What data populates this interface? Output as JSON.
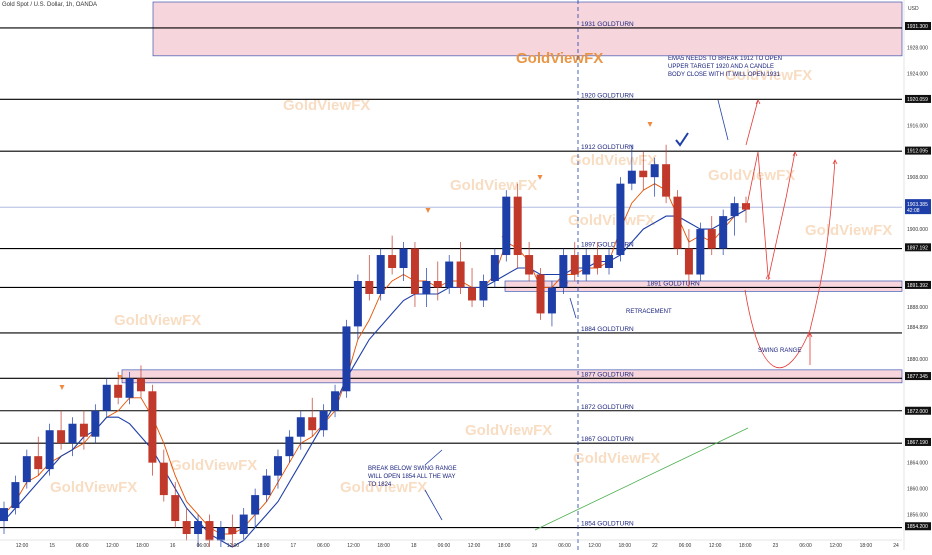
{
  "header": {
    "symbol_title": "Gold Spot / U.S. Dollar, 1h, OANDA",
    "currency": "USD"
  },
  "colors": {
    "bull": "#1f3fa8",
    "bear": "#c0392b",
    "level_line": "#000000",
    "zone_fill": "#f6d6dc",
    "zone_border": "#1f3fa8",
    "ema_fast": "#e65100",
    "ema_slow": "#1f3fa8",
    "current_price_line": "#1f3fa8",
    "projection": "#e53935",
    "watermark": "#f3c79b",
    "trend_line": "#4caf50"
  },
  "chart_data": {
    "type": "candlestick",
    "title": "Gold Spot / U.S. Dollar, 1h, OANDA",
    "ylim": [
      1851,
      1935
    ],
    "x_labels": [
      "12:00",
      "15",
      "06:00",
      "12:00",
      "18:00",
      "16",
      "06:00",
      "12:00",
      "18:00",
      "17",
      "06:00",
      "12:00",
      "18:00",
      "18",
      "06:00",
      "12:00",
      "18:00",
      "19",
      "06:00",
      "12:00",
      "18:00",
      "22",
      "06:00",
      "12:00",
      "18:00",
      "23",
      "06:00",
      "12:00",
      "18:00",
      "24"
    ],
    "y_tick_labels": [
      "1931.300",
      "1928.000",
      "1924.000",
      "1920.059",
      "1916.000",
      "1912.095",
      "1908.000",
      "1904.000",
      "1900.000",
      "1897.192",
      "1891.392",
      "1888.000",
      "1884.899",
      "1880.000",
      "1877.345",
      "1872.000",
      "1867.190",
      "1864.000",
      "1860.000",
      "1856.000",
      "1854.200"
    ],
    "levels": [
      {
        "price": 1931,
        "label": "1931 GOLDTURN"
      },
      {
        "price": 1920,
        "label": "1920 GOLDTURN"
      },
      {
        "price": 1912,
        "label": "1912 GOLDTURN"
      },
      {
        "price": 1897,
        "label": "1897 GOLDTURN"
      },
      {
        "price": 1891,
        "label": "1891 GOLDTURN"
      },
      {
        "price": 1884,
        "label": "1884 GOLDTURN"
      },
      {
        "price": 1877,
        "label": "1877 GOLDTURN"
      },
      {
        "price": 1872,
        "label": "1872 GOLDTURN"
      },
      {
        "price": 1867,
        "label": "1867 GOLDTURN"
      },
      {
        "price": 1854,
        "label": "1854 GOLDTURN"
      }
    ],
    "zones": [
      {
        "top": 1935,
        "bottom": 1926.7
      },
      {
        "top": 1878.3,
        "bottom": 1876.3
      },
      {
        "top": 1892.0,
        "bottom": 1890.4
      }
    ],
    "current_price": {
      "value": 1903.385,
      "label": "1903.385",
      "countdown": "42:08"
    },
    "candles": [
      {
        "o": 1855,
        "h": 1858,
        "l": 1853,
        "c": 1857
      },
      {
        "o": 1857,
        "h": 1862,
        "l": 1856,
        "c": 1861
      },
      {
        "o": 1861,
        "h": 1866,
        "l": 1860,
        "c": 1865
      },
      {
        "o": 1865,
        "h": 1868,
        "l": 1862,
        "c": 1863
      },
      {
        "o": 1863,
        "h": 1870,
        "l": 1862,
        "c": 1869
      },
      {
        "o": 1869,
        "h": 1872,
        "l": 1866,
        "c": 1867
      },
      {
        "o": 1867,
        "h": 1871,
        "l": 1865,
        "c": 1870
      },
      {
        "o": 1870,
        "h": 1872,
        "l": 1866,
        "c": 1868
      },
      {
        "o": 1868,
        "h": 1873,
        "l": 1867,
        "c": 1872
      },
      {
        "o": 1872,
        "h": 1877,
        "l": 1871,
        "c": 1876
      },
      {
        "o": 1876,
        "h": 1878,
        "l": 1873,
        "c": 1874
      },
      {
        "o": 1874,
        "h": 1878,
        "l": 1873,
        "c": 1877
      },
      {
        "o": 1877,
        "h": 1879,
        "l": 1874,
        "c": 1875
      },
      {
        "o": 1875,
        "h": 1876,
        "l": 1862,
        "c": 1864
      },
      {
        "o": 1864,
        "h": 1866,
        "l": 1858,
        "c": 1859
      },
      {
        "o": 1859,
        "h": 1861,
        "l": 1854,
        "c": 1855
      },
      {
        "o": 1855,
        "h": 1857,
        "l": 1852,
        "c": 1853
      },
      {
        "o": 1853,
        "h": 1856,
        "l": 1851,
        "c": 1855
      },
      {
        "o": 1855,
        "h": 1856,
        "l": 1851,
        "c": 1852
      },
      {
        "o": 1852,
        "h": 1855,
        "l": 1851,
        "c": 1854
      },
      {
        "o": 1854,
        "h": 1856,
        "l": 1851,
        "c": 1853
      },
      {
        "o": 1853,
        "h": 1857,
        "l": 1852,
        "c": 1856
      },
      {
        "o": 1856,
        "h": 1860,
        "l": 1854,
        "c": 1859
      },
      {
        "o": 1859,
        "h": 1863,
        "l": 1858,
        "c": 1862
      },
      {
        "o": 1862,
        "h": 1866,
        "l": 1860,
        "c": 1865
      },
      {
        "o": 1865,
        "h": 1869,
        "l": 1864,
        "c": 1868
      },
      {
        "o": 1868,
        "h": 1872,
        "l": 1866,
        "c": 1871
      },
      {
        "o": 1871,
        "h": 1874,
        "l": 1868,
        "c": 1869
      },
      {
        "o": 1869,
        "h": 1873,
        "l": 1868,
        "c": 1872
      },
      {
        "o": 1872,
        "h": 1876,
        "l": 1871,
        "c": 1875
      },
      {
        "o": 1875,
        "h": 1886,
        "l": 1874,
        "c": 1885
      },
      {
        "o": 1885,
        "h": 1893,
        "l": 1883,
        "c": 1892
      },
      {
        "o": 1892,
        "h": 1896,
        "l": 1889,
        "c": 1890
      },
      {
        "o": 1890,
        "h": 1897,
        "l": 1889,
        "c": 1896
      },
      {
        "o": 1896,
        "h": 1899,
        "l": 1893,
        "c": 1894
      },
      {
        "o": 1894,
        "h": 1898,
        "l": 1892,
        "c": 1897
      },
      {
        "o": 1897,
        "h": 1898,
        "l": 1888,
        "c": 1890
      },
      {
        "o": 1890,
        "h": 1894,
        "l": 1888,
        "c": 1892
      },
      {
        "o": 1892,
        "h": 1895,
        "l": 1889,
        "c": 1891
      },
      {
        "o": 1891,
        "h": 1896,
        "l": 1890,
        "c": 1895
      },
      {
        "o": 1895,
        "h": 1898,
        "l": 1890,
        "c": 1891
      },
      {
        "o": 1891,
        "h": 1894,
        "l": 1888,
        "c": 1889
      },
      {
        "o": 1889,
        "h": 1893,
        "l": 1888,
        "c": 1892
      },
      {
        "o": 1892,
        "h": 1897,
        "l": 1891,
        "c": 1896
      },
      {
        "o": 1896,
        "h": 1906,
        "l": 1895,
        "c": 1905
      },
      {
        "o": 1905,
        "h": 1907,
        "l": 1894,
        "c": 1896
      },
      {
        "o": 1896,
        "h": 1898,
        "l": 1892,
        "c": 1893
      },
      {
        "o": 1893,
        "h": 1894,
        "l": 1886,
        "c": 1887
      },
      {
        "o": 1887,
        "h": 1892,
        "l": 1885,
        "c": 1891
      },
      {
        "o": 1891,
        "h": 1897,
        "l": 1890,
        "c": 1896
      },
      {
        "o": 1896,
        "h": 1898,
        "l": 1892,
        "c": 1893
      },
      {
        "o": 1893,
        "h": 1897,
        "l": 1892,
        "c": 1896
      },
      {
        "o": 1896,
        "h": 1898,
        "l": 1893,
        "c": 1894
      },
      {
        "o": 1894,
        "h": 1897,
        "l": 1893,
        "c": 1896
      },
      {
        "o": 1896,
        "h": 1908,
        "l": 1895,
        "c": 1907
      },
      {
        "o": 1907,
        "h": 1913,
        "l": 1906,
        "c": 1909
      },
      {
        "o": 1909,
        "h": 1912,
        "l": 1906,
        "c": 1908
      },
      {
        "o": 1908,
        "h": 1911,
        "l": 1905,
        "c": 1910
      },
      {
        "o": 1910,
        "h": 1913,
        "l": 1904,
        "c": 1905
      },
      {
        "o": 1905,
        "h": 1906,
        "l": 1896,
        "c": 1897
      },
      {
        "o": 1897,
        "h": 1900,
        "l": 1891,
        "c": 1893
      },
      {
        "o": 1893,
        "h": 1901,
        "l": 1892,
        "c": 1900
      },
      {
        "o": 1900,
        "h": 1902,
        "l": 1896,
        "c": 1897
      },
      {
        "o": 1897,
        "h": 1903,
        "l": 1896,
        "c": 1902
      },
      {
        "o": 1902,
        "h": 1905,
        "l": 1899,
        "c": 1904
      },
      {
        "o": 1904,
        "h": 1905,
        "l": 1901,
        "c": 1903
      }
    ],
    "ema_fast": [
      1856,
      1858,
      1861,
      1862,
      1864,
      1865,
      1866,
      1867,
      1869,
      1871,
      1872,
      1874,
      1874,
      1871,
      1867,
      1862,
      1858,
      1856,
      1854,
      1853,
      1853,
      1854,
      1856,
      1858,
      1861,
      1864,
      1867,
      1868,
      1870,
      1872,
      1877,
      1883,
      1886,
      1890,
      1892,
      1893,
      1892,
      1892,
      1891,
      1892,
      1892,
      1891,
      1891,
      1893,
      1898,
      1897,
      1895,
      1891,
      1891,
      1893,
      1893,
      1894,
      1894,
      1895,
      1900,
      1904,
      1906,
      1907,
      1906,
      1902,
      1898,
      1899,
      1898,
      1900,
      1902,
      1903
    ],
    "ema_slow": [
      1855,
      1857,
      1859,
      1861,
      1863,
      1865,
      1866,
      1868,
      1869,
      1871,
      1871,
      1870,
      1868,
      1866,
      1863,
      1860,
      1857,
      1855,
      1853,
      1852,
      1851,
      1852,
      1854,
      1856,
      1858,
      1861,
      1864,
      1867,
      1870,
      1873,
      1877,
      1880,
      1883,
      1885,
      1887,
      1889,
      1890,
      1890,
      1890,
      1891,
      1891,
      1891,
      1891,
      1892,
      1893,
      1894,
      1894,
      1893,
      1893,
      1893,
      1894,
      1894,
      1895,
      1895,
      1896,
      1898,
      1900,
      1901,
      1902,
      1902,
      1901,
      1900,
      1900,
      1901,
      1902,
      1903
    ],
    "watermark_text": "GoldViewFX",
    "annotations": [
      {
        "text": "EMA5 NEEDS TO BREAK 1912 TO OPEN"
      },
      {
        "text": "UPPER TARGET 1920 AND A CANDLE"
      },
      {
        "text": "BODY CLOSE WITH IT WILL OPEN 1931"
      },
      {
        "text": "BREAK BELOW SWING RANGE"
      },
      {
        "text": "WILL OPEN 1854 ALL THE WAY"
      },
      {
        "text": "TO 1824"
      },
      {
        "text": "RETRACEMENT"
      },
      {
        "text": "SWING RANGE"
      }
    ]
  }
}
